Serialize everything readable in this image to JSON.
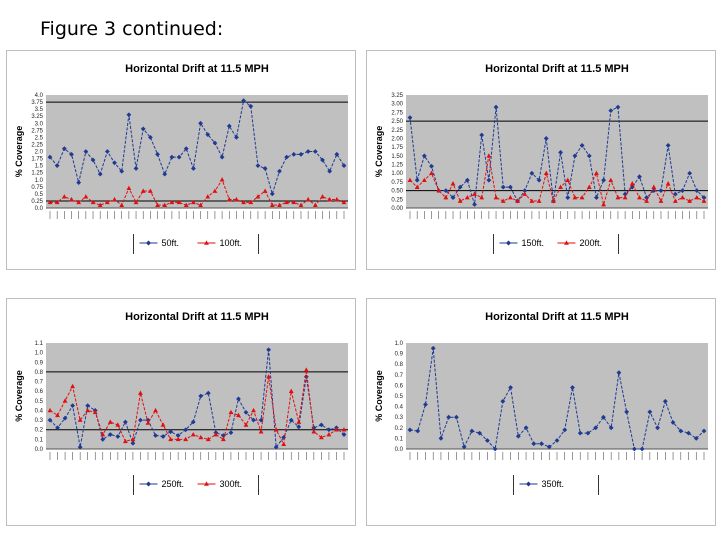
{
  "page": {
    "title": "Figure 3 continued:"
  },
  "chart_data": [
    {
      "type": "line",
      "title": "Horizontal Drift at 11.5 MPH",
      "ylabel": "% Coverage",
      "ylim": [
        0,
        4.0
      ],
      "yticks": [
        "0.0",
        "0.25",
        "0.5",
        "0.75",
        "1.0",
        "1.25",
        "1.5",
        "1.75",
        "2.0",
        "2.25",
        "2.5",
        "2.75",
        "3.0",
        "3.25",
        "3.5",
        "3.75",
        "4.0"
      ],
      "reference_lines": [
        3.75,
        0.25
      ],
      "series": [
        {
          "name": "50ft.",
          "color": "#1f3a93",
          "marker": "diamond",
          "values": [
            1.8,
            1.5,
            2.1,
            1.9,
            0.9,
            2.0,
            1.7,
            1.2,
            2.0,
            1.6,
            1.3,
            3.3,
            1.4,
            2.8,
            2.5,
            1.9,
            1.2,
            1.8,
            1.8,
            2.1,
            1.4,
            3.0,
            2.6,
            2.3,
            1.8,
            2.9,
            2.5,
            3.8,
            3.6,
            1.5,
            1.4,
            0.5,
            1.3,
            1.8,
            1.9,
            1.9,
            2.0,
            2.0,
            1.7,
            1.3,
            1.9,
            1.5
          ]
        },
        {
          "name": "100ft.",
          "color": "#e01010",
          "marker": "triangle",
          "values": [
            0.2,
            0.2,
            0.4,
            0.3,
            0.2,
            0.4,
            0.2,
            0.1,
            0.2,
            0.3,
            0.1,
            0.7,
            0.2,
            0.6,
            0.6,
            0.1,
            0.1,
            0.2,
            0.2,
            0.1,
            0.2,
            0.1,
            0.4,
            0.6,
            1.0,
            0.3,
            0.3,
            0.2,
            0.2,
            0.4,
            0.6,
            0.1,
            0.1,
            0.2,
            0.2,
            0.1,
            0.3,
            0.1,
            0.4,
            0.3,
            0.3,
            0.2
          ]
        }
      ]
    },
    {
      "type": "line",
      "title": "Horizontal Drift at 11.5 MPH",
      "ylabel": "% Coverage",
      "ylim": [
        0,
        3.25
      ],
      "yticks": [
        "0.00",
        "0.25",
        "0.50",
        "0.75",
        "1.00",
        "1.25",
        "1.50",
        "1.75",
        "2.00",
        "2.25",
        "2.50",
        "2.75",
        "3.00",
        "3.25"
      ],
      "reference_lines": [
        2.5,
        0.5
      ],
      "series": [
        {
          "name": "150ft.",
          "color": "#1f3a93",
          "marker": "diamond",
          "values": [
            2.6,
            0.8,
            1.5,
            1.2,
            0.5,
            0.5,
            0.3,
            0.6,
            0.8,
            0.1,
            2.1,
            0.8,
            2.9,
            0.6,
            0.6,
            0.2,
            0.5,
            1.0,
            0.8,
            2.0,
            0.2,
            1.6,
            0.3,
            1.5,
            1.8,
            1.5,
            0.3,
            0.8,
            2.8,
            2.9,
            0.4,
            0.6,
            0.9,
            0.3,
            0.5,
            0.5,
            1.8,
            0.4,
            0.5,
            1.0,
            0.5,
            0.3
          ]
        },
        {
          "name": "200ft.",
          "color": "#e01010",
          "marker": "triangle",
          "values": [
            0.8,
            0.6,
            0.8,
            1.0,
            0.5,
            0.3,
            0.7,
            0.2,
            0.3,
            0.4,
            0.3,
            1.5,
            0.3,
            0.2,
            0.3,
            0.2,
            0.4,
            0.2,
            0.2,
            1.0,
            0.2,
            0.6,
            0.8,
            0.3,
            0.3,
            0.6,
            1.0,
            0.1,
            0.8,
            0.3,
            0.3,
            0.7,
            0.3,
            0.2,
            0.6,
            0.2,
            0.7,
            0.2,
            0.3,
            0.2,
            0.3,
            0.2
          ]
        }
      ]
    },
    {
      "type": "line",
      "title": "Horizontal Drift at 11.5 MPH",
      "ylabel": "% Coverage",
      "ylim": [
        0,
        1.1
      ],
      "yticks": [
        "0.0",
        "0.1",
        "0.2",
        "0.3",
        "0.4",
        "0.5",
        "0.6",
        "0.7",
        "0.8",
        "0.9",
        "1.0",
        "1.1"
      ],
      "reference_lines": [
        0.8,
        0.2
      ],
      "series": [
        {
          "name": "250ft.",
          "color": "#1f3a93",
          "marker": "diamond",
          "values": [
            0.3,
            0.22,
            0.32,
            0.45,
            0.02,
            0.45,
            0.4,
            0.1,
            0.15,
            0.13,
            0.28,
            0.06,
            0.3,
            0.3,
            0.14,
            0.13,
            0.18,
            0.14,
            0.2,
            0.28,
            0.55,
            0.58,
            0.17,
            0.14,
            0.17,
            0.52,
            0.38,
            0.3,
            0.3,
            1.03,
            0.02,
            0.12,
            0.3,
            0.23,
            0.75,
            0.22,
            0.25,
            0.2,
            0.22,
            0.15
          ]
        },
        {
          "name": "300ft.",
          "color": "#e01010",
          "marker": "triangle",
          "values": [
            0.4,
            0.35,
            0.5,
            0.65,
            0.3,
            0.4,
            0.38,
            0.15,
            0.28,
            0.25,
            0.08,
            0.1,
            0.58,
            0.27,
            0.4,
            0.25,
            0.1,
            0.1,
            0.1,
            0.15,
            0.12,
            0.1,
            0.15,
            0.1,
            0.38,
            0.35,
            0.25,
            0.4,
            0.18,
            0.75,
            0.2,
            0.05,
            0.6,
            0.28,
            0.82,
            0.18,
            0.12,
            0.15,
            0.2,
            0.2
          ]
        }
      ]
    },
    {
      "type": "line",
      "title": "Horizontal Drift at 11.5 MPH",
      "ylabel": "% Coverage",
      "ylim": [
        0,
        1.0
      ],
      "yticks": [
        "0.0",
        "0.1",
        "0.2",
        "0.3",
        "0.4",
        "0.5",
        "0.6",
        "0.7",
        "0.8",
        "0.9",
        "1.0"
      ],
      "reference_lines": [],
      "series": [
        {
          "name": "350ft.",
          "color": "#1f3a93",
          "marker": "diamond",
          "values": [
            0.18,
            0.17,
            0.42,
            0.95,
            0.1,
            0.3,
            0.3,
            0.02,
            0.17,
            0.15,
            0.08,
            0.0,
            0.45,
            0.58,
            0.12,
            0.2,
            0.05,
            0.05,
            0.02,
            0.08,
            0.18,
            0.58,
            0.15,
            0.15,
            0.2,
            0.3,
            0.2,
            0.72,
            0.35,
            0.0,
            0.0,
            0.35,
            0.2,
            0.45,
            0.25,
            0.17,
            0.15,
            0.1,
            0.17
          ]
        }
      ]
    }
  ]
}
